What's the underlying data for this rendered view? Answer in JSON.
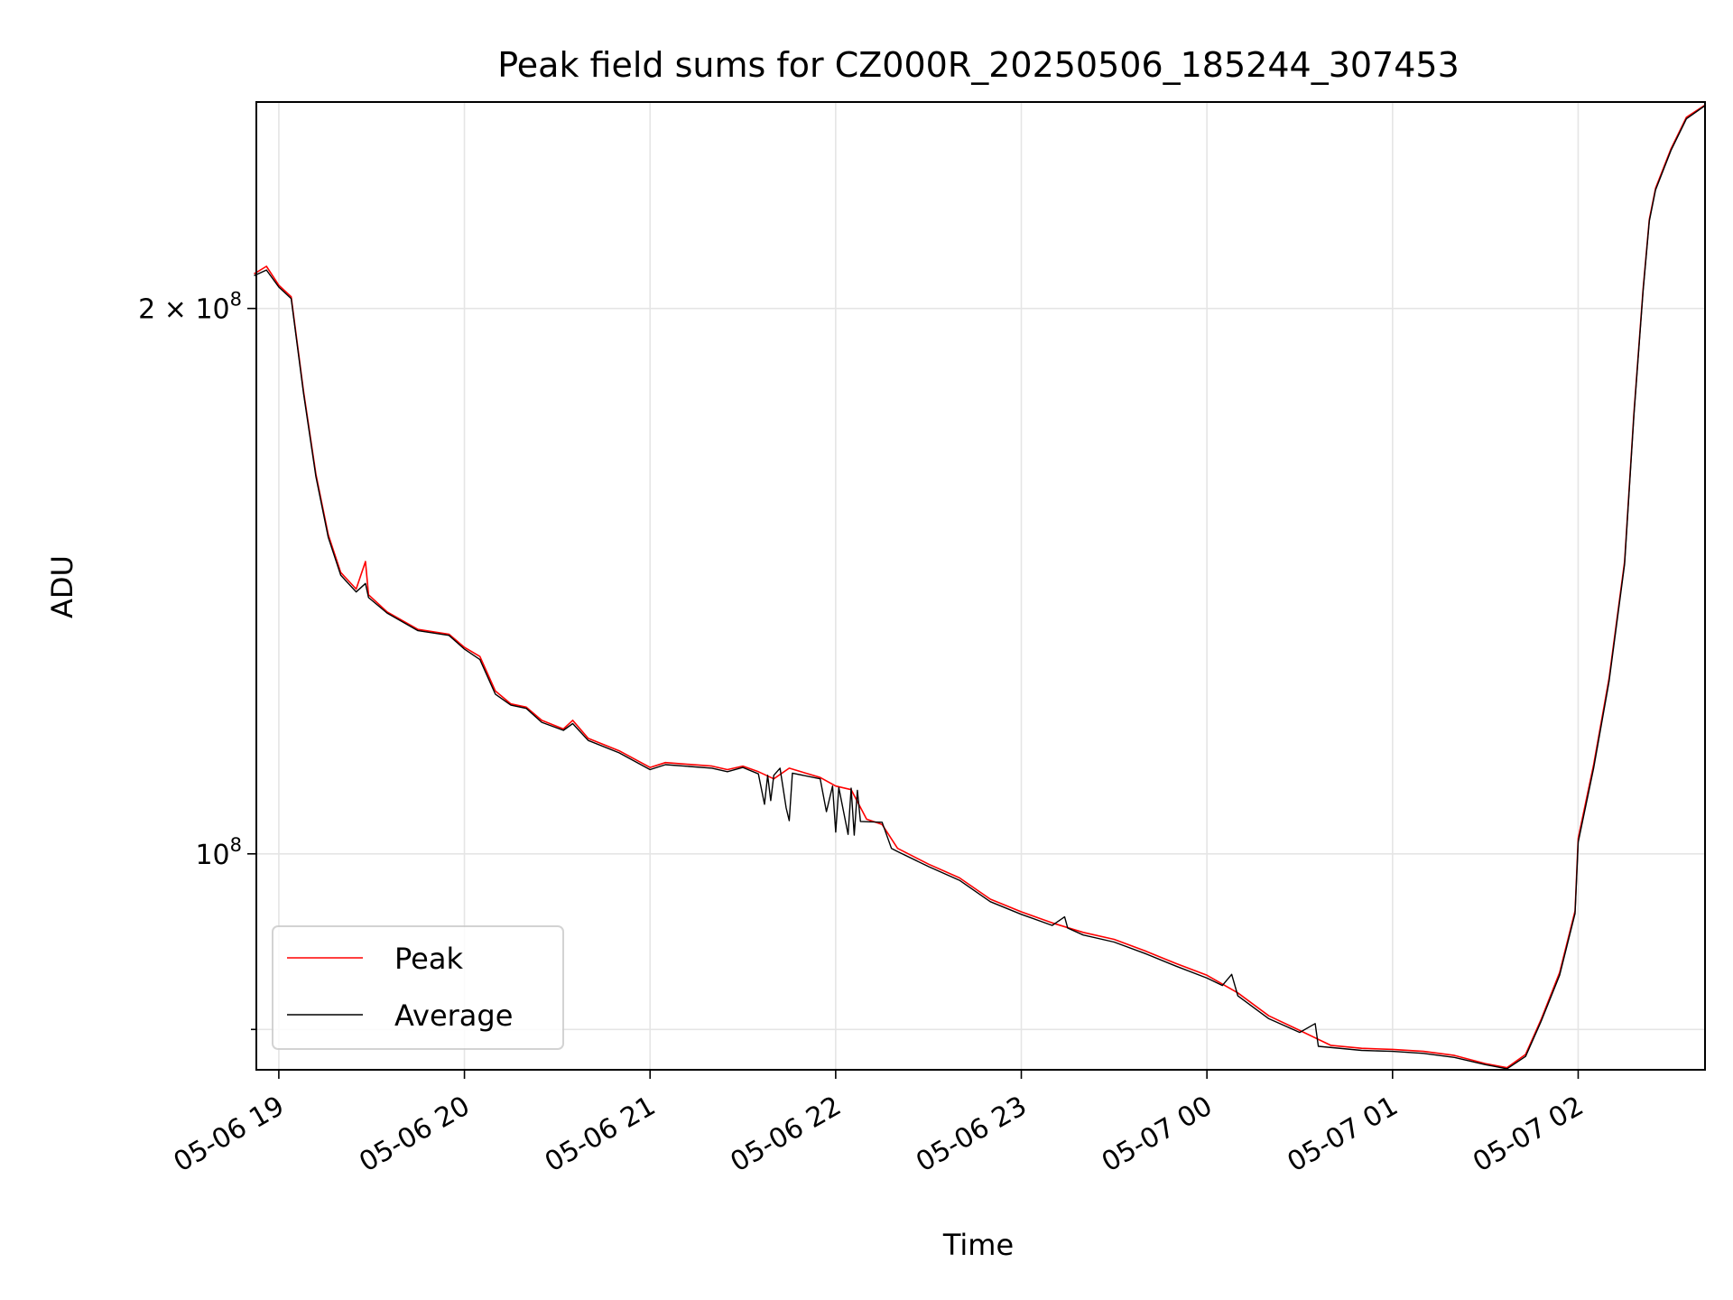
{
  "chart_data": {
    "type": "line",
    "title": "Peak field sums for CZ000R_20250506_185244_307453",
    "xlabel": "Time",
    "ylabel": "ADU",
    "y_scale": "log",
    "ylim": [
      76000000,
      260000000
    ],
    "xlim": [
      "05-06 18:52:44",
      "05-07 02:41:00"
    ],
    "grid": true,
    "legend_position": "lower-left",
    "x_ticks": [
      "05-06 19",
      "05-06 20",
      "05-06 21",
      "05-06 22",
      "05-06 23",
      "05-07 00",
      "05-07 01",
      "05-07 02"
    ],
    "y_ticks": [
      {
        "value": 200000000,
        "mantissa": "2",
        "times": "×",
        "base": "10",
        "exp": "8"
      },
      {
        "value": 100000000,
        "mantissa": "",
        "times": "",
        "base": "10",
        "exp": "8"
      }
    ],
    "x_time_format": "MM-DD HH:MM",
    "series": [
      {
        "name": "Peak",
        "color": "#ff0000",
        "points": [
          [
            "05-06 18:52",
            209000000
          ],
          [
            "05-06 18:56",
            211000000
          ],
          [
            "05-06 19:00",
            206000000
          ],
          [
            "05-06 19:04",
            203000000
          ],
          [
            "05-06 19:08",
            180000000
          ],
          [
            "05-06 19:12",
            162000000
          ],
          [
            "05-06 19:16",
            150000000
          ],
          [
            "05-06 19:20",
            143000000
          ],
          [
            "05-06 19:25",
            140000000
          ],
          [
            "05-06 19:28",
            145000000
          ],
          [
            "05-06 19:29",
            139000000
          ],
          [
            "05-06 19:35",
            136000000
          ],
          [
            "05-06 19:45",
            133000000
          ],
          [
            "05-06 19:55",
            132200000
          ],
          [
            "05-06 20:00",
            130000000
          ],
          [
            "05-06 20:05",
            128500000
          ],
          [
            "05-06 20:10",
            123000000
          ],
          [
            "05-06 20:15",
            121000000
          ],
          [
            "05-06 20:20",
            120500000
          ],
          [
            "05-06 20:25",
            118500000
          ],
          [
            "05-06 20:32",
            117200000
          ],
          [
            "05-06 20:35",
            118500000
          ],
          [
            "05-06 20:40",
            115800000
          ],
          [
            "05-06 20:50",
            114000000
          ],
          [
            "05-06 21:00",
            111600000
          ],
          [
            "05-06 21:05",
            112300000
          ],
          [
            "05-06 21:20",
            111800000
          ],
          [
            "05-06 21:25",
            111300000
          ],
          [
            "05-06 21:30",
            111800000
          ],
          [
            "05-06 21:35",
            111000000
          ],
          [
            "05-06 21:40",
            110000000
          ],
          [
            "05-06 21:45",
            111500000
          ],
          [
            "05-06 21:55",
            110200000
          ],
          [
            "05-06 22:00",
            109000000
          ],
          [
            "05-06 22:05",
            108500000
          ],
          [
            "05-06 22:10",
            104500000
          ],
          [
            "05-06 22:15",
            103800000
          ],
          [
            "05-06 22:20",
            100700000
          ],
          [
            "05-06 22:30",
            98700000
          ],
          [
            "05-06 22:40",
            97000000
          ],
          [
            "05-06 22:50",
            94400000
          ],
          [
            "05-06 23:00",
            92900000
          ],
          [
            "05-06 23:10",
            91600000
          ],
          [
            "05-06 23:20",
            90500000
          ],
          [
            "05-06 23:30",
            89700000
          ],
          [
            "05-06 23:40",
            88400000
          ],
          [
            "05-06 23:50",
            87000000
          ],
          [
            "05-07 00:00",
            85700000
          ],
          [
            "05-07 00:10",
            83800000
          ],
          [
            "05-07 00:20",
            81400000
          ],
          [
            "05-07 00:30",
            79900000
          ],
          [
            "05-07 00:40",
            78400000
          ],
          [
            "05-07 00:50",
            78100000
          ],
          [
            "05-07 01:00",
            78000000
          ],
          [
            "05-07 01:10",
            77800000
          ],
          [
            "05-07 01:20",
            77400000
          ],
          [
            "05-07 01:30",
            76600000
          ],
          [
            "05-07 01:37",
            76200000
          ],
          [
            "05-07 01:43",
            77500000
          ],
          [
            "05-07 01:48",
            81000000
          ],
          [
            "05-07 01:54",
            86000000
          ],
          [
            "05-07 01:59",
            93000000
          ],
          [
            "05-07 02:00",
            102000000
          ],
          [
            "05-07 02:05",
            112000000
          ],
          [
            "05-07 02:10",
            125000000
          ],
          [
            "05-07 02:15",
            145000000
          ],
          [
            "05-07 02:18",
            175000000
          ],
          [
            "05-07 02:21",
            205000000
          ],
          [
            "05-07 02:23",
            224000000
          ],
          [
            "05-07 02:25",
            233000000
          ],
          [
            "05-07 02:30",
            245000000
          ],
          [
            "05-07 02:35",
            255000000
          ],
          [
            "05-07 02:41",
            259000000
          ]
        ]
      },
      {
        "name": "Average",
        "color": "#000000",
        "points": [
          [
            "05-06 18:52",
            208500000
          ],
          [
            "05-06 18:56",
            210000000
          ],
          [
            "05-06 19:00",
            205500000
          ],
          [
            "05-06 19:04",
            202500000
          ],
          [
            "05-06 19:08",
            179500000
          ],
          [
            "05-06 19:12",
            161500000
          ],
          [
            "05-06 19:16",
            149500000
          ],
          [
            "05-06 19:20",
            142500000
          ],
          [
            "05-06 19:25",
            139500000
          ],
          [
            "05-06 19:28",
            141000000
          ],
          [
            "05-06 19:29",
            138500000
          ],
          [
            "05-06 19:35",
            135800000
          ],
          [
            "05-06 19:45",
            132800000
          ],
          [
            "05-06 19:55",
            132000000
          ],
          [
            "05-06 20:00",
            129700000
          ],
          [
            "05-06 20:05",
            128000000
          ],
          [
            "05-06 20:10",
            122500000
          ],
          [
            "05-06 20:15",
            120800000
          ],
          [
            "05-06 20:20",
            120300000
          ],
          [
            "05-06 20:25",
            118200000
          ],
          [
            "05-06 20:32",
            117000000
          ],
          [
            "05-06 20:35",
            118000000
          ],
          [
            "05-06 20:40",
            115500000
          ],
          [
            "05-06 20:50",
            113700000
          ],
          [
            "05-06 21:00",
            111300000
          ],
          [
            "05-06 21:05",
            112000000
          ],
          [
            "05-06 21:20",
            111500000
          ],
          [
            "05-06 21:25",
            111000000
          ],
          [
            "05-06 21:30",
            111600000
          ],
          [
            "05-06 21:35",
            110700000
          ],
          [
            "05-06 21:37",
            106500000
          ],
          [
            "05-06 21:38",
            110500000
          ],
          [
            "05-06 21:39",
            107000000
          ],
          [
            "05-06 21:40",
            110500000
          ],
          [
            "05-06 21:42",
            111500000
          ],
          [
            "05-06 21:44",
            106000000
          ],
          [
            "05-06 21:45",
            104300000
          ],
          [
            "05-06 21:46",
            110800000
          ],
          [
            "05-06 21:55",
            110000000
          ],
          [
            "05-06 21:57",
            105500000
          ],
          [
            "05-06 21:59",
            109000000
          ],
          [
            "05-06 22:00",
            102800000
          ],
          [
            "05-06 22:01",
            108800000
          ],
          [
            "05-06 22:04",
            102500000
          ],
          [
            "05-06 22:05",
            108700000
          ],
          [
            "05-06 22:06",
            102400000
          ],
          [
            "05-06 22:07",
            108400000
          ],
          [
            "05-06 22:08",
            104200000
          ],
          [
            "05-06 22:15",
            104100000
          ],
          [
            "05-06 22:18",
            100700000
          ],
          [
            "05-06 22:20",
            100300000
          ],
          [
            "05-06 22:30",
            98400000
          ],
          [
            "05-06 22:40",
            96700000
          ],
          [
            "05-06 22:50",
            94100000
          ],
          [
            "05-06 23:00",
            92600000
          ],
          [
            "05-06 23:10",
            91300000
          ],
          [
            "05-06 23:14",
            92300000
          ],
          [
            "05-06 23:15",
            91000000
          ],
          [
            "05-06 23:20",
            90200000
          ],
          [
            "05-06 23:30",
            89400000
          ],
          [
            "05-06 23:40",
            88100000
          ],
          [
            "05-06 23:50",
            86700000
          ],
          [
            "05-07 00:00",
            85400000
          ],
          [
            "05-07 00:05",
            84600000
          ],
          [
            "05-07 00:08",
            85800000
          ],
          [
            "05-07 00:10",
            83500000
          ],
          [
            "05-07 00:20",
            81100000
          ],
          [
            "05-07 00:30",
            79700000
          ],
          [
            "05-07 00:35",
            80600000
          ],
          [
            "05-07 00:36",
            78300000
          ],
          [
            "05-07 00:50",
            77900000
          ],
          [
            "05-07 01:00",
            77800000
          ],
          [
            "05-07 01:10",
            77600000
          ],
          [
            "05-07 01:20",
            77200000
          ],
          [
            "05-07 01:30",
            76500000
          ],
          [
            "05-07 01:37",
            76100000
          ],
          [
            "05-07 01:43",
            77300000
          ],
          [
            "05-07 01:48",
            80800000
          ],
          [
            "05-07 01:54",
            85700000
          ],
          [
            "05-07 01:59",
            92700000
          ],
          [
            "05-07 02:00",
            101500000
          ],
          [
            "05-07 02:05",
            111500000
          ],
          [
            "05-07 02:10",
            124500000
          ],
          [
            "05-07 02:15",
            144500000
          ],
          [
            "05-07 02:18",
            174500000
          ],
          [
            "05-07 02:21",
            204500000
          ],
          [
            "05-07 02:23",
            223500000
          ],
          [
            "05-07 02:25",
            232500000
          ],
          [
            "05-07 02:30",
            244500000
          ],
          [
            "05-07 02:35",
            254500000
          ],
          [
            "05-07 02:41",
            258800000
          ]
        ]
      }
    ]
  }
}
